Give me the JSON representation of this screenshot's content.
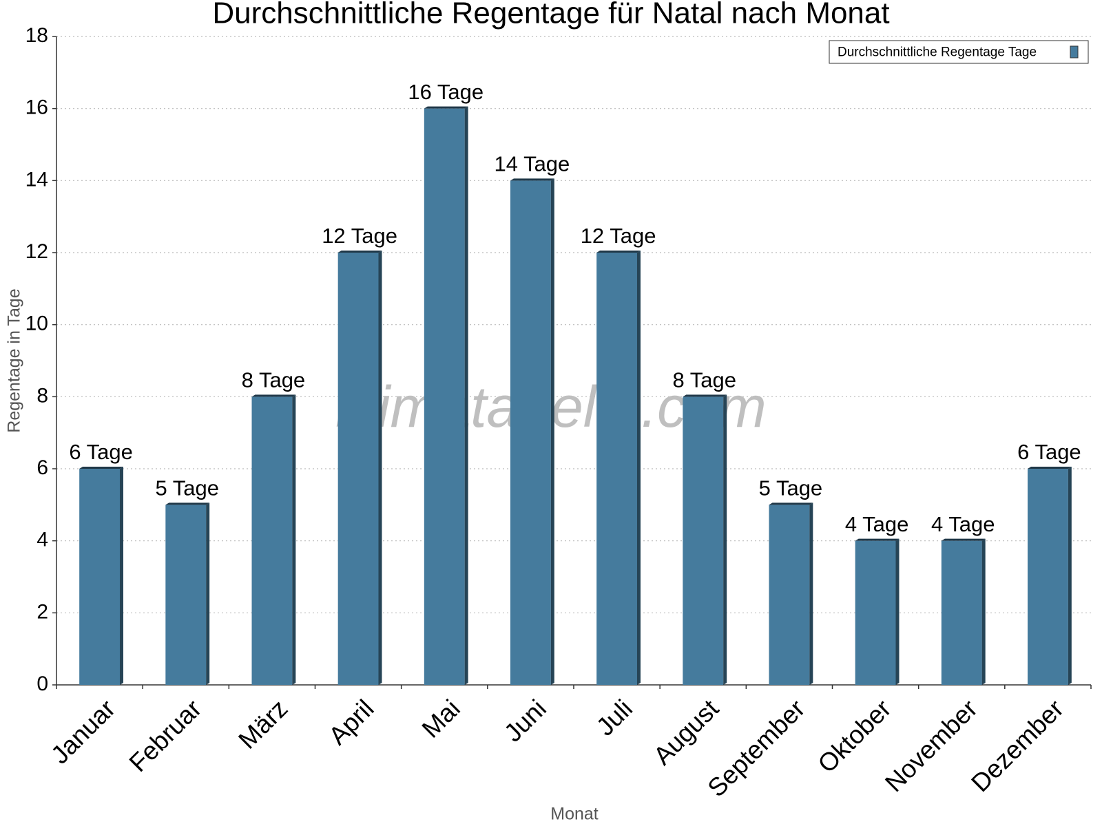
{
  "chart_data": {
    "type": "bar",
    "title": "Durchschnittliche Regentage für Natal nach Monat",
    "x_label": "Monat",
    "y_label": "Regentage in Tage",
    "watermark": "klimatabelle.com",
    "categories": [
      "Januar",
      "Februar",
      "März",
      "April",
      "Mai",
      "Juni",
      "Juli",
      "August",
      "September",
      "Oktober",
      "November",
      "Dezember"
    ],
    "series": [
      {
        "name": "Durchschnittliche Regentage Tage",
        "color": "#457b9d",
        "values": [
          6,
          5,
          8,
          12,
          16,
          14,
          12,
          8,
          5,
          4,
          4,
          6
        ],
        "value_labels": [
          "6 Tage",
          "5 Tage",
          "8 Tage",
          "12 Tage",
          "16 Tage",
          "14 Tage",
          "12 Tage",
          "8 Tage",
          "5 Tage",
          "4 Tage",
          "4 Tage",
          "6 Tage"
        ]
      }
    ],
    "ylim": [
      0,
      18
    ],
    "yticks": [
      0,
      2,
      4,
      6,
      8,
      10,
      12,
      14,
      16,
      18
    ],
    "grid": true,
    "legend_position": "upper right"
  }
}
